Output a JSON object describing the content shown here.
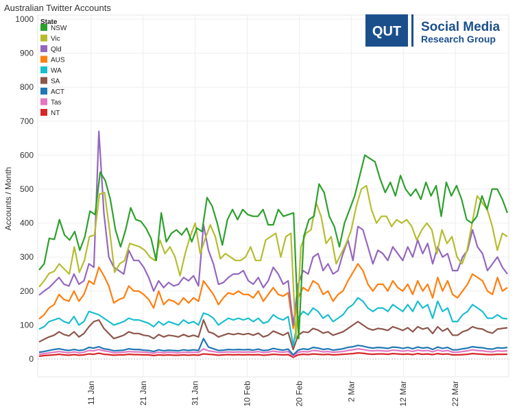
{
  "chart_data": {
    "type": "line",
    "title": "Australian Twitter Accounts",
    "ylabel": "Accounts / Month",
    "xlabel": "",
    "ylim": [
      0,
      1000
    ],
    "yticks": [
      0,
      100,
      200,
      300,
      400,
      500,
      600,
      700,
      800,
      900,
      1000
    ],
    "x_start": "1 Jan",
    "x_tick_labels": [
      "11 Jan",
      "21 Jan",
      "31 Jan",
      "10 Feb",
      "20 Feb",
      "2 Mar",
      "12 Mar",
      "22 Mar"
    ],
    "x_tick_days": [
      10,
      20,
      30,
      40,
      50,
      60,
      70,
      80
    ],
    "x_range": [
      0,
      90
    ],
    "grid": true,
    "legend": {
      "title": "State",
      "position": "top-left"
    },
    "series": [
      {
        "name": "NSW",
        "color": "#2ca02c",
        "values": [
          262,
          280,
          355,
          352,
          410,
          365,
          350,
          375,
          320,
          360,
          435,
          425,
          550,
          525,
          470,
          380,
          330,
          380,
          445,
          410,
          405,
          385,
          355,
          290,
          430,
          345,
          370,
          380,
          365,
          385,
          345,
          385,
          375,
          475,
          450,
          400,
          335,
          410,
          440,
          410,
          440,
          425,
          420,
          420,
          440,
          395,
          395,
          440,
          420,
          425,
          430,
          60,
          360,
          410,
          420,
          515,
          490,
          420,
          390,
          330,
          400,
          440,
          480,
          540,
          600,
          590,
          580,
          530,
          490,
          520,
          480,
          540,
          500,
          480,
          500,
          470,
          520,
          480,
          510,
          420,
          520,
          480,
          510,
          470,
          410,
          400,
          420,
          480,
          440,
          500,
          500,
          470,
          430
        ]
      },
      {
        "name": "Vic",
        "color": "#b5bd2f",
        "values": [
          212,
          230,
          252,
          258,
          280,
          265,
          250,
          330,
          255,
          290,
          360,
          365,
          485,
          490,
          380,
          255,
          280,
          290,
          340,
          335,
          330,
          320,
          300,
          290,
          350,
          310,
          330,
          300,
          245,
          310,
          360,
          400,
          310,
          355,
          395,
          360,
          295,
          310,
          300,
          290,
          290,
          300,
          330,
          290,
          290,
          350,
          360,
          370,
          300,
          360,
          370,
          60,
          330,
          370,
          380,
          460,
          420,
          340,
          360,
          280,
          310,
          340,
          380,
          450,
          500,
          510,
          440,
          400,
          420,
          420,
          390,
          410,
          400,
          410,
          390,
          350,
          380,
          400,
          380,
          310,
          380,
          340,
          360,
          300,
          280,
          320,
          400,
          480,
          460,
          440,
          390,
          320,
          370,
          360
        ]
      },
      {
        "name": "Qld",
        "color": "#9467bd",
        "values": [
          188,
          200,
          210,
          225,
          240,
          220,
          215,
          250,
          220,
          230,
          280,
          270,
          670,
          430,
          300,
          270,
          260,
          250,
          320,
          290,
          290,
          270,
          240,
          200,
          230,
          210,
          225,
          215,
          220,
          240,
          230,
          245,
          215,
          395,
          320,
          280,
          220,
          225,
          240,
          250,
          250,
          260,
          230,
          220,
          240,
          210,
          230,
          270,
          250,
          220,
          230,
          100,
          220,
          260,
          250,
          300,
          310,
          260,
          280,
          250,
          260,
          310,
          350,
          290,
          390,
          380,
          330,
          280,
          320,
          310,
          290,
          330,
          310,
          290,
          330,
          300,
          350,
          310,
          340,
          280,
          330,
          300,
          310,
          260,
          260,
          300,
          320,
          380,
          330,
          310,
          260,
          280,
          300,
          270,
          250
        ]
      },
      {
        "name": "AUS",
        "color": "#ff7f0e",
        "values": [
          118,
          130,
          150,
          160,
          190,
          175,
          170,
          200,
          170,
          190,
          230,
          220,
          270,
          245,
          215,
          165,
          175,
          180,
          215,
          200,
          200,
          190,
          175,
          150,
          200,
          160,
          175,
          170,
          160,
          180,
          165,
          180,
          170,
          230,
          210,
          190,
          160,
          180,
          195,
          190,
          200,
          190,
          190,
          180,
          200,
          170,
          190,
          210,
          190,
          185,
          195,
          90,
          180,
          210,
          200,
          230,
          220,
          190,
          200,
          170,
          190,
          200,
          230,
          255,
          280,
          260,
          220,
          200,
          220,
          220,
          200,
          230,
          210,
          200,
          220,
          190,
          230,
          200,
          220,
          180,
          240,
          200,
          230,
          190,
          180,
          200,
          220,
          250,
          240,
          230,
          200,
          190,
          240,
          200,
          210
        ]
      },
      {
        "name": "WA",
        "color": "#17becf",
        "values": [
          88,
          95,
          110,
          115,
          120,
          110,
          105,
          125,
          100,
          110,
          140,
          135,
          130,
          120,
          110,
          100,
          105,
          110,
          120,
          115,
          115,
          110,
          105,
          95,
          110,
          100,
          110,
          105,
          100,
          115,
          105,
          110,
          100,
          135,
          130,
          120,
          100,
          110,
          120,
          115,
          120,
          115,
          120,
          110,
          120,
          105,
          110,
          130,
          120,
          115,
          125,
          40,
          120,
          140,
          130,
          150,
          140,
          120,
          130,
          110,
          120,
          130,
          150,
          160,
          180,
          170,
          150,
          140,
          150,
          150,
          140,
          160,
          150,
          140,
          160,
          140,
          170,
          150,
          160,
          120,
          170,
          140,
          150,
          110,
          110,
          130,
          140,
          160,
          150,
          140,
          120,
          120,
          130,
          120,
          118
        ]
      },
      {
        "name": "SA",
        "color": "#8c564b",
        "values": [
          50,
          58,
          65,
          70,
          80,
          72,
          68,
          80,
          65,
          75,
          95,
          110,
          115,
          90,
          75,
          60,
          65,
          70,
          80,
          75,
          75,
          70,
          68,
          60,
          72,
          65,
          70,
          68,
          65,
          72,
          66,
          70,
          65,
          115,
          80,
          75,
          65,
          70,
          75,
          72,
          75,
          72,
          75,
          70,
          76,
          65,
          70,
          82,
          76,
          70,
          78,
          28,
          70,
          80,
          78,
          90,
          85,
          76,
          80,
          70,
          75,
          80,
          90,
          100,
          110,
          100,
          90,
          85,
          90,
          88,
          84,
          95,
          90,
          84,
          92,
          80,
          95,
          88,
          92,
          75,
          95,
          82,
          90,
          70,
          70,
          80,
          85,
          95,
          90,
          88,
          80,
          76,
          88,
          90,
          92
        ]
      },
      {
        "name": "ACT",
        "color": "#1f77b4",
        "values": [
          20,
          22,
          25,
          28,
          30,
          27,
          25,
          28,
          25,
          27,
          34,
          32,
          36,
          30,
          28,
          24,
          25,
          26,
          30,
          28,
          28,
          26,
          25,
          22,
          27,
          24,
          26,
          25,
          24,
          27,
          25,
          27,
          25,
          60,
          35,
          30,
          25,
          26,
          28,
          27,
          28,
          27,
          28,
          26,
          29,
          25,
          26,
          31,
          28,
          26,
          29,
          12,
          26,
          30,
          28,
          34,
          32,
          28,
          30,
          26,
          28,
          30,
          34,
          36,
          40,
          38,
          34,
          32,
          34,
          33,
          31,
          35,
          34,
          31,
          34,
          30,
          35,
          32,
          34,
          28,
          35,
          31,
          34,
          27,
          27,
          30,
          32,
          36,
          34,
          33,
          30,
          29,
          33,
          32,
          34
        ]
      },
      {
        "name": "Tas",
        "color": "#e377c2",
        "values": [
          14,
          16,
          18,
          20,
          22,
          20,
          18,
          21,
          18,
          20,
          25,
          24,
          28,
          24,
          22,
          18,
          19,
          20,
          22,
          21,
          21,
          20,
          19,
          17,
          20,
          18,
          20,
          19,
          18,
          20,
          19,
          20,
          19,
          30,
          24,
          22,
          19,
          20,
          21,
          20,
          21,
          20,
          21,
          20,
          22,
          19,
          20,
          23,
          21,
          20,
          22,
          8,
          20,
          22,
          21,
          25,
          24,
          21,
          22,
          20,
          21,
          22,
          25,
          27,
          30,
          28,
          25,
          24,
          25,
          24,
          23,
          26,
          25,
          23,
          25,
          22,
          26,
          24,
          25,
          21,
          26,
          23,
          25,
          20,
          20,
          22,
          24,
          27,
          25,
          24,
          22,
          21,
          24,
          23,
          24
        ]
      },
      {
        "name": "NT",
        "color": "#d62728",
        "values": [
          8,
          10,
          11,
          12,
          14,
          12,
          11,
          13,
          11,
          12,
          15,
          14,
          17,
          14,
          13,
          11,
          12,
          12,
          14,
          13,
          13,
          12,
          12,
          10,
          12,
          11,
          12,
          11,
          11,
          12,
          11,
          12,
          11,
          15,
          14,
          13,
          11,
          12,
          13,
          12,
          13,
          12,
          13,
          12,
          13,
          11,
          12,
          14,
          13,
          12,
          13,
          5,
          12,
          14,
          13,
          15,
          14,
          13,
          14,
          12,
          13,
          14,
          15,
          16,
          18,
          17,
          15,
          14,
          15,
          15,
          14,
          16,
          15,
          14,
          15,
          13,
          16,
          14,
          15,
          13,
          16,
          14,
          15,
          12,
          12,
          13,
          14,
          16,
          15,
          14,
          13,
          13,
          14,
          14,
          14
        ]
      }
    ]
  },
  "logo": {
    "mark": "QUT",
    "line1": "Social Media",
    "line2": "Research Group",
    "color": "#1b4f8c"
  }
}
